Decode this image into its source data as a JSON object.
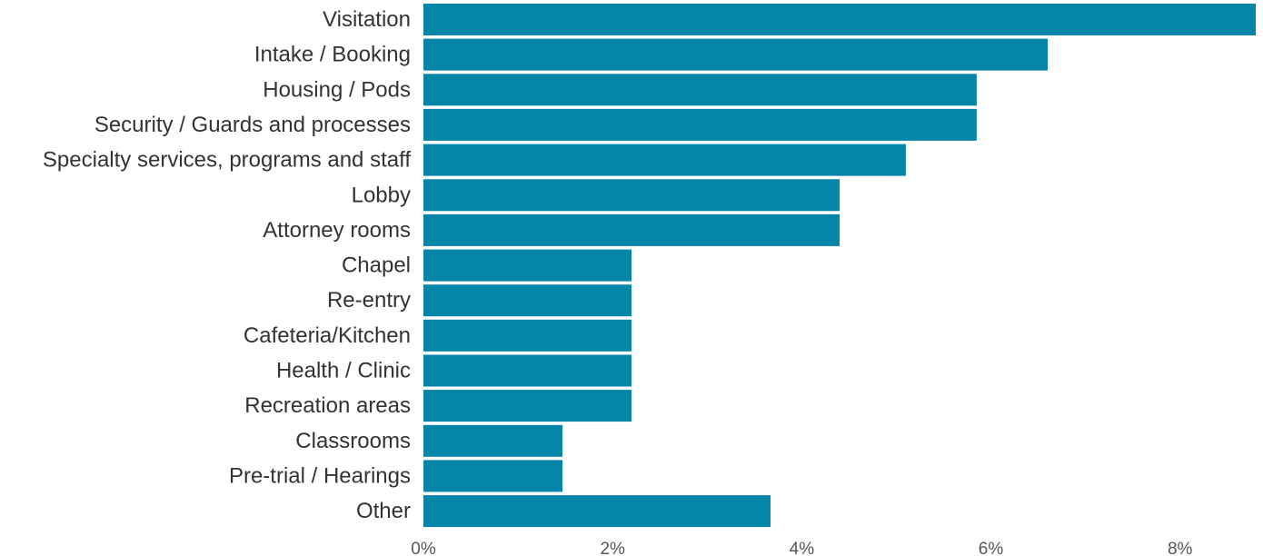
{
  "chart_data": {
    "type": "bar",
    "orientation": "horizontal",
    "title": "",
    "xlabel": "",
    "ylabel": "",
    "categories": [
      "Visitation",
      "Intake / Booking",
      "Housing / Pods",
      "Security / Guards and processes",
      "Specialty services, programs and staff",
      "Lobby",
      "Attorney rooms",
      "Chapel",
      "Re-entry",
      "Cafeteria/Kitchen",
      "Health / Clinic",
      "Recreation areas",
      "Classrooms",
      "Pre-trial / Hearings",
      "Other"
    ],
    "values": [
      8.8,
      6.6,
      5.85,
      5.85,
      5.1,
      4.4,
      4.4,
      2.2,
      2.2,
      2.2,
      2.2,
      2.2,
      1.47,
      1.47,
      3.67
    ],
    "xlim": [
      0,
      8.8
    ],
    "xticks": [
      0,
      2,
      4,
      6,
      8
    ],
    "xtick_labels": [
      "0%",
      "2%",
      "4%",
      "6%",
      "8%"
    ],
    "grid": false,
    "legend": "none",
    "bar_color": "#0585a8"
  }
}
